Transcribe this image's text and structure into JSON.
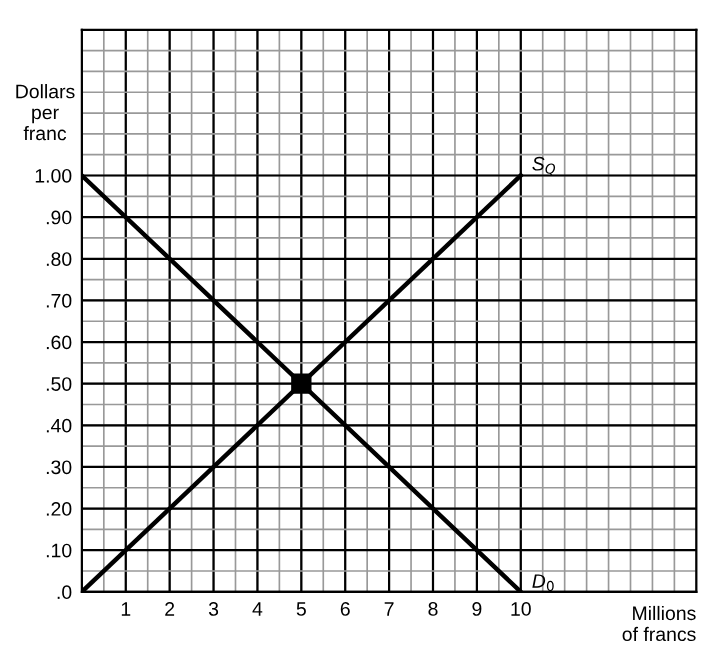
{
  "chart_data": {
    "type": "line",
    "xlabel": "Millions\nof francs",
    "ylabel": "Dollars\nper\nfranc",
    "xlim": [
      0,
      14
    ],
    "ylim": [
      0,
      1.35
    ],
    "xticks": [
      1,
      2,
      3,
      4,
      5,
      6,
      7,
      8,
      9,
      10
    ],
    "yticks": [
      {
        "value": 0,
        "label": ".0"
      },
      {
        "value": 0.1,
        "label": ".10"
      },
      {
        "value": 0.2,
        "label": ".20"
      },
      {
        "value": 0.3,
        "label": ".30"
      },
      {
        "value": 0.4,
        "label": ".40"
      },
      {
        "value": 0.5,
        "label": ".50"
      },
      {
        "value": 0.6,
        "label": ".60"
      },
      {
        "value": 0.7,
        "label": ".70"
      },
      {
        "value": 0.8,
        "label": ".80"
      },
      {
        "value": 0.9,
        "label": ".90"
      },
      {
        "value": 1.0,
        "label": "1.00"
      }
    ],
    "grid": true,
    "line_style": "solid",
    "marker": "none",
    "series": [
      {
        "name": "S$_{Q}$",
        "color": "#000000",
        "x": [
          0,
          10
        ],
        "values": [
          0,
          1.0
        ]
      },
      {
        "name": "D$_{0}$",
        "color": "#000000",
        "x": [
          0,
          10
        ],
        "values": [
          1.0,
          0
        ]
      },
      {
        "type": "scatter",
        "color": "#000000",
        "x": [
          5
        ],
        "values": [
          0.5
        ],
        "marker": "square"
      }
    ]
  }
}
